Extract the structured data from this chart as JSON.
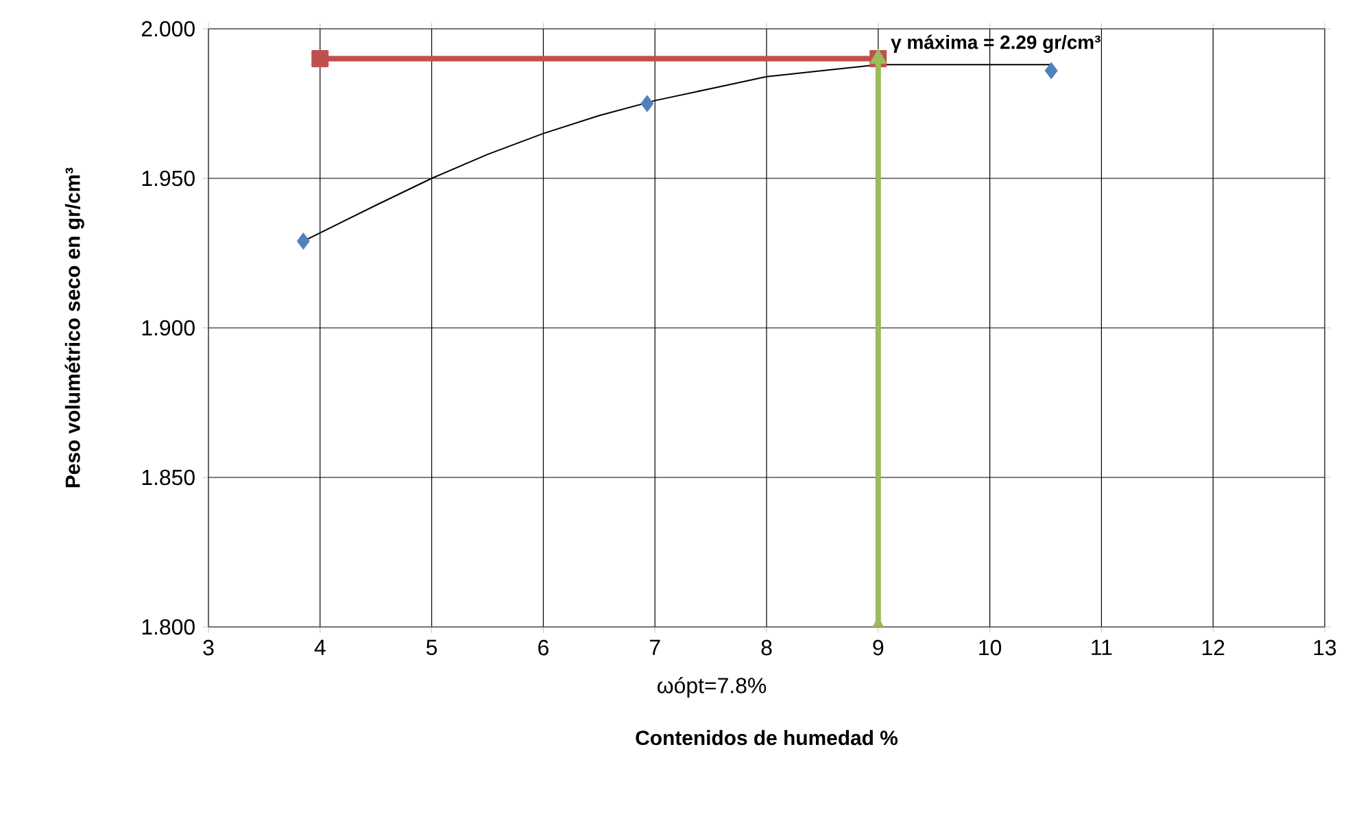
{
  "chart_data": {
    "type": "scatter",
    "xlabel": "Contenidos de humedad %",
    "ylabel": "Peso volumétrico seco en gr/cm³",
    "annotations": [
      {
        "text": "γ máxima =  2.29 gr/cm³",
        "x": 9,
        "y": 1.99
      },
      "ωópt=7.8%"
    ],
    "xlim": [
      3,
      13
    ],
    "xticks": [
      3,
      4,
      5,
      6,
      7,
      8,
      9,
      10,
      11,
      12,
      13
    ],
    "ylim": [
      1.8,
      2.0
    ],
    "yticks": [
      {
        "value": 1.8,
        "label": "1.800"
      },
      {
        "value": 1.85,
        "label": "1.850"
      },
      {
        "value": 1.9,
        "label": "1.900"
      },
      {
        "value": 1.95,
        "label": "1.950"
      },
      {
        "value": 2.0,
        "label": "2.000"
      }
    ],
    "grid": true,
    "series": [
      {
        "type": "line",
        "color": "#000000",
        "marker": "none",
        "x": [
          3.85,
          4.5,
          5,
          5.5,
          6,
          6.5,
          7,
          7.5,
          8,
          8.5,
          9,
          9.5,
          10,
          10.55
        ],
        "values": [
          1.929,
          1.941,
          1.95,
          1.958,
          1.965,
          1.971,
          1.976,
          1.98,
          1.984,
          1.986,
          1.988,
          1.988,
          1.988,
          1.988
        ]
      },
      {
        "color": "#4f81bd",
        "marker": "diamond",
        "x": [
          3.85,
          6.93,
          10.55
        ],
        "values": [
          1.929,
          1.975,
          1.986
        ]
      },
      {
        "type": "line",
        "color": "#c0504d",
        "marker": "square",
        "x": [
          4,
          9
        ],
        "values": [
          1.99,
          1.99
        ]
      },
      {
        "type": "line",
        "color": "#9bbb59",
        "marker": "triangle",
        "x": [
          9,
          9
        ],
        "values": [
          1.8,
          1.99
        ]
      }
    ]
  }
}
